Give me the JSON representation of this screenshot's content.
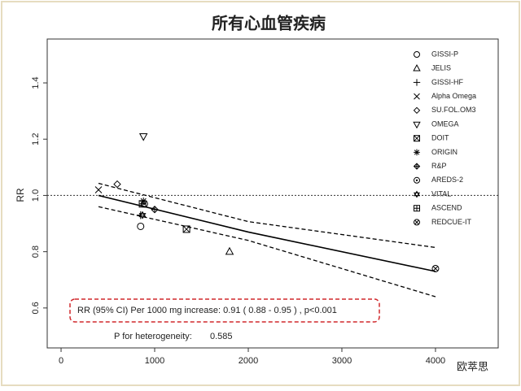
{
  "chart_data": {
    "type": "scatter",
    "title": "所有心血管疾病",
    "y_label": "RR",
    "xlim": [
      -148,
      4670
    ],
    "ylim": [
      0.458,
      1.556
    ],
    "xticks": [
      0,
      1000,
      2000,
      3000,
      4000
    ],
    "yticks": [
      0.6,
      0.8,
      {
        "value": 1,
        "label": "1.0"
      },
      1.2,
      1.4
    ],
    "reference_line": 1,
    "color": "#000000",
    "series": [
      {
        "name": "GISSI-P",
        "marker": "circle",
        "x": [
          850
        ],
        "values": [
          0.89
        ]
      },
      {
        "name": "JELIS",
        "marker": "triangle",
        "x": [
          1800
        ],
        "values": [
          0.8
        ]
      },
      {
        "name": "GISSI-HF",
        "marker": "plus",
        "x": [
          850
        ],
        "values": [
          0.93
        ]
      },
      {
        "name": "Alpha Omega",
        "marker": "cross",
        "x": [
          400
        ],
        "values": [
          1.02
        ]
      },
      {
        "name": "SU.FOL.OM3",
        "marker": "diamond",
        "x": [
          600
        ],
        "values": [
          1.04
        ]
      },
      {
        "name": "OMEGA",
        "marker": "triangle-down",
        "x": [
          880
        ],
        "values": [
          1.21
        ]
      },
      {
        "name": "DOIT",
        "marker": "square-cross",
        "x": [
          1340
        ],
        "values": [
          0.88
        ]
      },
      {
        "name": "ORIGIN",
        "marker": "asterisk",
        "x": [
          880
        ],
        "values": [
          0.98
        ]
      },
      {
        "name": "R&P",
        "marker": "diamond-plus",
        "x": [
          1000
        ],
        "values": [
          0.95
        ]
      },
      {
        "name": "AREDS-2",
        "marker": "circle-dot",
        "x": [
          890
        ],
        "values": [
          0.97
        ]
      },
      {
        "name": "VITAL",
        "marker": "star",
        "x": [
          870
        ],
        "values": [
          0.93
        ]
      },
      {
        "name": "ASCEND",
        "marker": "square-plus",
        "x": [
          870
        ],
        "values": [
          0.97
        ]
      },
      {
        "name": "REDCUE-IT",
        "marker": "circle-cross",
        "x": [
          4000
        ],
        "values": [
          0.74
        ]
      }
    ],
    "fit": {
      "x": [
        400,
        2000,
        4000
      ],
      "values": [
        1.0,
        0.87,
        0.73
      ]
    },
    "ci_upper": {
      "x": [
        400,
        2000,
        4000
      ],
      "values": [
        1.043,
        0.907,
        0.815
      ]
    },
    "ci_lower": {
      "x": [
        400,
        2000,
        4000
      ],
      "values": [
        0.96,
        0.84,
        0.64
      ]
    },
    "annotations": [
      "RR (95% CI) Per 1000 mg increase: 0.91 ( 0.88 - 0.95 ) , p<0.001",
      "P for heterogeneity:",
      "0.585"
    ],
    "watermark": "欧萃思"
  }
}
